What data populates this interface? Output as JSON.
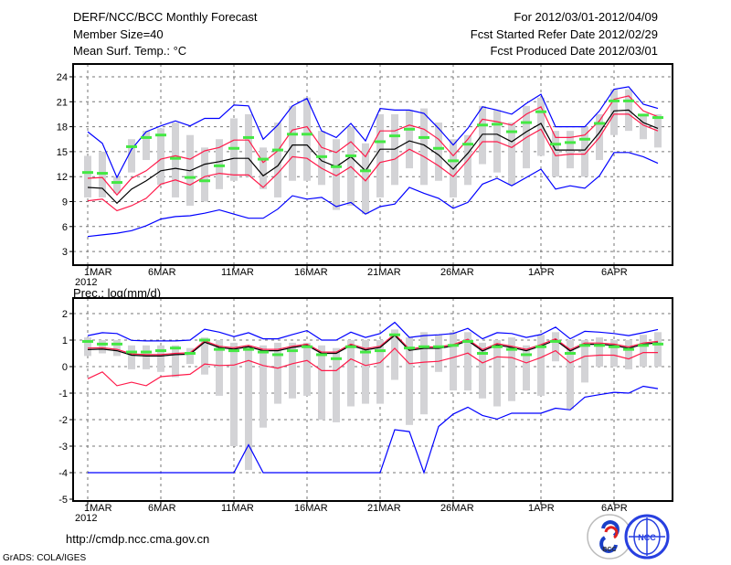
{
  "header": {
    "title": "DERF/NCC/BCC Monthly Forecast",
    "member_size": "Member Size=40",
    "period": "For 2012/03/01-2012/04/09",
    "started": "Fcst Started Refer Date 2012/02/29",
    "produced": "Fcst Produced Date 2012/03/01"
  },
  "footer": {
    "url": "http://cmdp.ncc.cma.gov.cn",
    "credit": "GrADS: COLA/IGES",
    "logo_bcc": "BCC",
    "logo_ncc": "NCC"
  },
  "colors": {
    "max_min": "#0000ff",
    "spread": "#ff1a4a",
    "mean": "#000000",
    "box": "#d3d3d6",
    "median": "#44e844"
  },
  "chart_data": [
    {
      "type": "line",
      "title": "Mean Surf. Temp.: °C",
      "xlabel": "",
      "ylabel": "",
      "ylim": [
        1.4,
        25.5
      ],
      "yticks": [
        3,
        6,
        9,
        12,
        15,
        18,
        21,
        24
      ],
      "xtick_labels": [
        "1MAR",
        "6MAR",
        "11MAR",
        "16MAR",
        "21MAR",
        "26MAR",
        "1APR",
        "6APR"
      ],
      "xtick_days": [
        0,
        5,
        10,
        15,
        20,
        25,
        31,
        36
      ],
      "year_label": "2012",
      "grid": true,
      "n_days": 40,
      "series": [
        {
          "name": "max",
          "values": [
            17.4,
            16.0,
            11.9,
            15.3,
            17.4,
            18.1,
            18.7,
            18.1,
            19.0,
            19.0,
            20.6,
            20.5,
            16.5,
            18.2,
            20.5,
            21.4,
            17.5,
            16.7,
            18.4,
            16.3,
            20.2,
            20.0,
            20.0,
            19.6,
            17.8,
            15.8,
            17.8,
            20.4,
            20.0,
            19.5,
            20.8,
            21.9,
            18.0,
            18.0,
            18.0,
            19.9,
            22.5,
            22.8,
            20.7,
            20.2
          ]
        },
        {
          "name": "upper",
          "values": [
            11.8,
            11.9,
            9.8,
            11.8,
            12.7,
            14.1,
            14.5,
            14.1,
            15.1,
            15.5,
            16.4,
            16.4,
            13.7,
            15.1,
            17.6,
            18.0,
            15.5,
            14.9,
            16.2,
            14.4,
            17.5,
            17.5,
            18.2,
            17.7,
            16.5,
            14.5,
            16.5,
            18.9,
            18.6,
            18.2,
            19.5,
            20.4,
            16.7,
            16.7,
            17.0,
            18.7,
            21.3,
            21.7,
            19.9,
            19.2
          ]
        },
        {
          "name": "mean",
          "values": [
            10.7,
            10.6,
            8.8,
            10.5,
            11.5,
            12.7,
            13.0,
            12.7,
            13.5,
            13.8,
            14.2,
            14.2,
            12.1,
            13.3,
            15.8,
            15.8,
            13.9,
            13.2,
            14.4,
            12.7,
            15.3,
            15.3,
            16.3,
            15.8,
            14.6,
            12.9,
            14.8,
            17.1,
            17.1,
            16.2,
            17.4,
            18.4,
            15.2,
            15.2,
            15.2,
            17.3,
            19.9,
            20.0,
            18.5,
            17.8
          ]
        },
        {
          "name": "lower",
          "values": [
            9.1,
            9.3,
            7.9,
            8.5,
            9.4,
            11.1,
            11.6,
            11.0,
            12.0,
            12.4,
            12.2,
            12.2,
            10.7,
            12.4,
            14.4,
            14.2,
            13.0,
            12.1,
            13.2,
            11.5,
            13.7,
            14.1,
            15.3,
            14.4,
            13.3,
            12.0,
            14.0,
            16.2,
            16.2,
            15.5,
            16.7,
            17.7,
            14.5,
            14.7,
            14.7,
            16.7,
            19.5,
            19.5,
            18.2,
            17.5
          ]
        },
        {
          "name": "min",
          "values": [
            4.8,
            5.0,
            5.2,
            5.5,
            6.1,
            6.9,
            7.2,
            7.3,
            7.6,
            8.0,
            7.5,
            7.0,
            7.0,
            8.1,
            9.7,
            9.3,
            9.5,
            8.4,
            8.9,
            7.5,
            8.4,
            8.7,
            10.7,
            10.0,
            9.4,
            8.2,
            8.9,
            11.1,
            11.8,
            10.9,
            11.9,
            12.9,
            10.5,
            10.9,
            10.6,
            12.1,
            14.9,
            14.9,
            14.4,
            13.6
          ]
        }
      ],
      "median": [
        12.5,
        12.4,
        11.3,
        15.6,
        16.7,
        17.0,
        14.2,
        11.9,
        11.5,
        13.3,
        15.4,
        16.7,
        14.1,
        15.2,
        17.1,
        17.1,
        14.4,
        13.2,
        14.5,
        12.7,
        16.2,
        16.9,
        17.7,
        16.7,
        15.4,
        13.9,
        15.9,
        18.2,
        18.3,
        17.4,
        18.5,
        19.8,
        15.9,
        16.1,
        16.5,
        18.4,
        21.1,
        21.1,
        19.4,
        19.1
      ],
      "box_range": [
        [
          9.5,
          14.5
        ],
        [
          9.5,
          15.0
        ],
        [
          10,
          12
        ],
        [
          12.5,
          16.5
        ],
        [
          14,
          17.5
        ],
        [
          11,
          17.8
        ],
        [
          9.5,
          18.5
        ],
        [
          8.5,
          17.0
        ],
        [
          9,
          15.5
        ],
        [
          10.5,
          16.5
        ],
        [
          11.5,
          19
        ],
        [
          12,
          19.5
        ],
        [
          10.5,
          15.5
        ],
        [
          9.5,
          18.5
        ],
        [
          11.5,
          20.5
        ],
        [
          11.5,
          21.5
        ],
        [
          11,
          17.5
        ],
        [
          8,
          16.5
        ],
        [
          8.5,
          18
        ],
        [
          7.5,
          16
        ],
        [
          9.5,
          19.5
        ],
        [
          11,
          19.5
        ],
        [
          13,
          20
        ],
        [
          11,
          20.2
        ],
        [
          11.5,
          18.5
        ],
        [
          9.5,
          16.5
        ],
        [
          11,
          17
        ],
        [
          13.5,
          20.5
        ],
        [
          12.5,
          20
        ],
        [
          11,
          18.5
        ],
        [
          13,
          20.5
        ],
        [
          14.5,
          21.5
        ],
        [
          12,
          17.5
        ],
        [
          13,
          17.5
        ],
        [
          12,
          18
        ],
        [
          14,
          19.5
        ],
        [
          17,
          22.5
        ],
        [
          17.5,
          22.5
        ],
        [
          16.5,
          19.5
        ],
        [
          15.5,
          19.5
        ]
      ]
    },
    {
      "type": "line",
      "title": "Prec.: log(mm/d)",
      "xlabel": "",
      "ylabel": "",
      "ylim": [
        -5,
        2.6
      ],
      "yticks": [
        -5,
        -4,
        -3,
        -2,
        -1,
        0,
        1,
        2
      ],
      "xtick_labels": [
        "1MAR",
        "6MAR",
        "11MAR",
        "16MAR",
        "21MAR",
        "26MAR",
        "1APR",
        "6APR"
      ],
      "xtick_days": [
        0,
        5,
        10,
        15,
        20,
        25,
        31,
        36
      ],
      "year_label": "2012",
      "grid": true,
      "n_days": 40,
      "series": [
        {
          "name": "max",
          "values": [
            1.17,
            1.28,
            1.25,
            0.99,
            0.97,
            0.97,
            0.97,
            1.0,
            1.41,
            1.3,
            1.13,
            1.28,
            1.05,
            1.05,
            1.21,
            1.36,
            1.0,
            1.0,
            1.3,
            1.1,
            1.25,
            1.67,
            1.1,
            1.17,
            1.2,
            1.25,
            1.44,
            1.05,
            1.28,
            1.25,
            1.1,
            1.21,
            1.49,
            1.05,
            1.33,
            1.3,
            1.25,
            1.17,
            1.28,
            1.4
          ]
        },
        {
          "name": "upper",
          "values": [
            0.7,
            0.71,
            0.65,
            0.48,
            0.45,
            0.45,
            0.5,
            0.52,
            0.97,
            0.77,
            0.71,
            0.8,
            0.65,
            0.65,
            0.77,
            0.85,
            0.55,
            0.55,
            0.85,
            0.68,
            0.77,
            1.23,
            0.66,
            0.74,
            0.74,
            0.83,
            1.03,
            0.64,
            0.87,
            0.77,
            0.65,
            0.83,
            1.05,
            0.64,
            0.89,
            0.89,
            0.85,
            0.74,
            0.89,
            0.95
          ]
        },
        {
          "name": "mean",
          "values": [
            0.64,
            0.66,
            0.6,
            0.43,
            0.4,
            0.4,
            0.45,
            0.47,
            0.92,
            0.72,
            0.66,
            0.75,
            0.6,
            0.6,
            0.72,
            0.8,
            0.5,
            0.5,
            0.8,
            0.63,
            0.72,
            1.18,
            0.61,
            0.69,
            0.69,
            0.78,
            0.98,
            0.59,
            0.82,
            0.72,
            0.6,
            0.78,
            1.0,
            0.59,
            0.84,
            0.84,
            0.8,
            0.69,
            0.84,
            0.9
          ]
        },
        {
          "name": "lower",
          "values": [
            -0.46,
            -0.2,
            -0.72,
            -0.59,
            -0.72,
            -0.38,
            -0.33,
            -0.29,
            0.1,
            0.04,
            0.06,
            0.23,
            0.04,
            -0.06,
            0.11,
            0.23,
            -0.15,
            -0.15,
            0.29,
            0.04,
            0.15,
            0.69,
            0.11,
            0.17,
            0.2,
            0.34,
            0.51,
            0.14,
            0.37,
            0.34,
            0.14,
            0.34,
            0.6,
            0.14,
            0.39,
            0.43,
            0.43,
            0.29,
            0.53,
            0.53
          ]
        },
        {
          "name": "min",
          "values": [
            -4,
            -4,
            -4,
            -4,
            -4,
            -4,
            -4,
            -4,
            -4,
            -4,
            -4,
            -2.95,
            -4,
            -4,
            -4,
            -4,
            -4,
            -4,
            -4,
            -4,
            -4,
            -2.38,
            -2.45,
            -4,
            -2.26,
            -1.79,
            -1.53,
            -1.84,
            -1.98,
            -1.76,
            -1.76,
            -1.76,
            -1.57,
            -1.63,
            -1.15,
            -1.06,
            -0.97,
            -1.0,
            -0.74,
            -0.83
          ]
        }
      ],
      "median": [
        0.95,
        0.85,
        0.85,
        0.55,
        0.55,
        0.6,
        0.7,
        0.5,
        1.0,
        0.65,
        0.6,
        0.65,
        0.55,
        0.45,
        0.6,
        0.75,
        0.45,
        0.3,
        0.75,
        0.55,
        0.6,
        1.2,
        0.7,
        0.75,
        0.75,
        0.8,
        0.95,
        0.5,
        0.75,
        0.65,
        0.45,
        0.75,
        0.95,
        0.5,
        0.8,
        0.8,
        0.75,
        0.65,
        0.8,
        0.85
      ],
      "box_range": [
        [
          0.4,
          1.1
        ],
        [
          0.5,
          1.0
        ],
        [
          0.4,
          1.0
        ],
        [
          -0.1,
          0.8
        ],
        [
          -0.1,
          0.8
        ],
        [
          -0.2,
          0.8
        ],
        [
          -0.4,
          0.8
        ],
        [
          0.1,
          0.7
        ],
        [
          -0.3,
          1.1
        ],
        [
          -1.1,
          1.0
        ],
        [
          -3.0,
          0.9
        ],
        [
          -3.9,
          0.8
        ],
        [
          -2.3,
          0.8
        ],
        [
          -1.4,
          0.9
        ],
        [
          -1.2,
          0.9
        ],
        [
          -1.1,
          0.9
        ],
        [
          -2.0,
          0.8
        ],
        [
          -2.1,
          0.7
        ],
        [
          -1.5,
          1.0
        ],
        [
          -1.4,
          1.0
        ],
        [
          -1.4,
          1.0
        ],
        [
          -0.5,
          1.4
        ],
        [
          -2.2,
          1.1
        ],
        [
          -1.8,
          1.3
        ],
        [
          -0.2,
          1.2
        ],
        [
          -0.9,
          1.3
        ],
        [
          -0.9,
          1.3
        ],
        [
          -1.2,
          0.9
        ],
        [
          -1.5,
          1.0
        ],
        [
          -1.3,
          1.1
        ],
        [
          -0.9,
          0.8
        ],
        [
          -1.1,
          1.2
        ],
        [
          0.2,
          1.3
        ],
        [
          -1.6,
          1.0
        ],
        [
          -0.6,
          1.0
        ],
        [
          0.0,
          1.1
        ],
        [
          0.0,
          1.0
        ],
        [
          -0.1,
          1.0
        ],
        [
          0.0,
          1.2
        ],
        [
          0.0,
          1.3
        ]
      ]
    }
  ]
}
